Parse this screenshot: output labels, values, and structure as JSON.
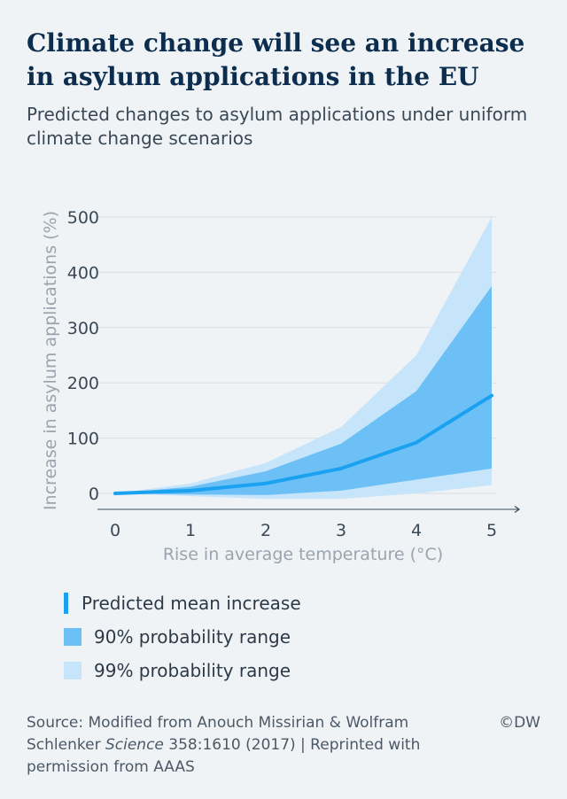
{
  "header": {
    "title": "Climate change will see an increase in asylum applications in the EU",
    "subtitle": "Predicted changes to asylum applications under uniform climate change scenarios"
  },
  "legend": {
    "mean": "Predicted mean increase",
    "range90": "90% probability range",
    "range99": "99% probability range"
  },
  "footer": {
    "source_prefix": "Source: Modified from Anouch Missirian & Wolfram Schlenker ",
    "source_journal": "Science",
    "source_suffix": " 358:1610 (2017) | Reprinted with permission from AAAS",
    "brand": "©DW"
  },
  "colors": {
    "mean": "#1aa1f0",
    "range90": "#6cc0f6",
    "range99": "#c6e4fa",
    "title": "#0c2d4e"
  },
  "chart_data": {
    "type": "area",
    "xlabel": "Rise in average temperature (°C)",
    "ylabel": "Increase in asylum applications (%)",
    "x": [
      0,
      1,
      2,
      3,
      4,
      5
    ],
    "xticks": [
      "0",
      "1",
      "2",
      "3",
      "4",
      "5"
    ],
    "yticks": [
      0,
      100,
      200,
      300,
      400,
      500
    ],
    "xlim": [
      0,
      5
    ],
    "ylim": [
      0,
      500
    ],
    "grid": true,
    "legend_placement": "bottom",
    "series": [
      {
        "name": "99% probability range",
        "kind": "band",
        "lower": [
          0,
          -5,
          -10,
          -10,
          0,
          15
        ],
        "upper": [
          0,
          18,
          55,
          120,
          250,
          500
        ]
      },
      {
        "name": "90% probability range",
        "kind": "band",
        "lower": [
          0,
          -2,
          -3,
          5,
          25,
          45
        ],
        "upper": [
          0,
          12,
          40,
          90,
          185,
          375
        ]
      },
      {
        "name": "Predicted mean increase",
        "kind": "line",
        "values": [
          0,
          5,
          18,
          45,
          92,
          177
        ]
      }
    ]
  }
}
